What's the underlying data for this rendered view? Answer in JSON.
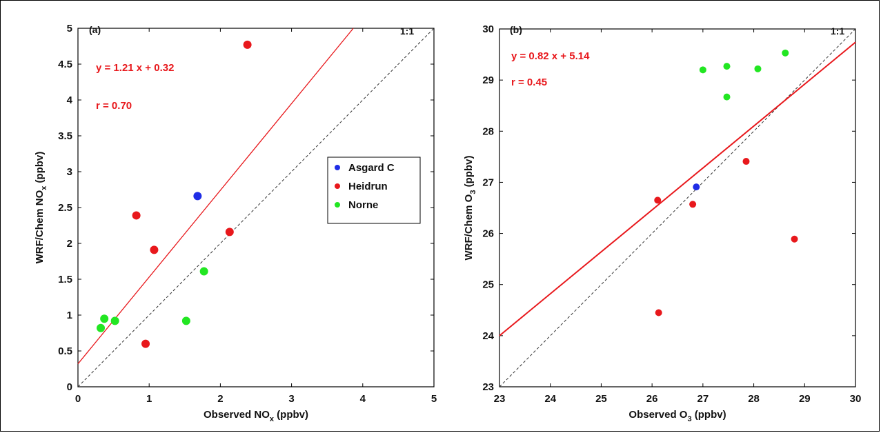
{
  "chart_data": [
    {
      "type": "scatter",
      "panel_label": "(a)",
      "xlabel": "Observed NO",
      "xlabel_sub": "x",
      "xlabel_tail": " (ppbv)",
      "ylabel": "WRF/Chem NO",
      "ylabel_sub": "x",
      "ylabel_tail": " (ppbv)",
      "xlim": [
        0,
        5
      ],
      "ylim": [
        0,
        5
      ],
      "xticks": [
        0,
        1,
        2,
        3,
        4,
        5
      ],
      "yticks": [
        0,
        0.5,
        1,
        1.5,
        2,
        2.5,
        3,
        3.5,
        4,
        4.5,
        5
      ],
      "xtick_labels": [
        "0",
        "1",
        "2",
        "3",
        "4",
        "5"
      ],
      "ytick_labels": [
        "0",
        "0.5",
        "1",
        "1.5",
        "2",
        "2.5",
        "3",
        "3.5",
        "4",
        "4.5",
        "5"
      ],
      "one_to_one_label": "1:1",
      "regression": {
        "slope": 1.21,
        "intercept": 0.32,
        "equation": "y = 1.21 x + 0.32",
        "r_text": "r = 0.70"
      },
      "series": [
        {
          "name": "Asgard C",
          "color": "#1f2de6",
          "points": [
            [
              1.68,
              2.66
            ]
          ]
        },
        {
          "name": "Heidrun",
          "color": "#e8181c",
          "points": [
            [
              2.38,
              4.77
            ],
            [
              0.82,
              2.39
            ],
            [
              1.07,
              1.91
            ],
            [
              2.13,
              2.16
            ],
            [
              0.95,
              0.6
            ]
          ]
        },
        {
          "name": "Norne",
          "color": "#22e622",
          "points": [
            [
              1.77,
              1.61
            ],
            [
              1.52,
              0.92
            ],
            [
              0.52,
              0.92
            ],
            [
              0.37,
              0.95
            ],
            [
              0.32,
              0.82
            ]
          ]
        }
      ],
      "legend": {
        "placement": "center-right"
      }
    },
    {
      "type": "scatter",
      "panel_label": "(b)",
      "xlabel": "Observed O",
      "xlabel_sub": "3",
      "xlabel_tail": " (ppbv)",
      "ylabel": "WRF/Chem O",
      "ylabel_sub": "3",
      "ylabel_tail": " (ppbv)",
      "xlim": [
        23,
        30
      ],
      "ylim": [
        23,
        30
      ],
      "xticks": [
        23,
        24,
        25,
        26,
        27,
        28,
        29,
        30
      ],
      "yticks": [
        23,
        24,
        25,
        26,
        27,
        28,
        29,
        30
      ],
      "xtick_labels": [
        "23",
        "24",
        "25",
        "26",
        "27",
        "28",
        "29",
        "30"
      ],
      "ytick_labels": [
        "23",
        "24",
        "25",
        "26",
        "27",
        "28",
        "29",
        "30"
      ],
      "one_to_one_label": "1:1",
      "regression": {
        "slope": 0.82,
        "intercept": 5.14,
        "equation": "y = 0.82 x + 5.14",
        "r_text": "r = 0.45"
      },
      "series": [
        {
          "name": "Asgard C",
          "color": "#1f2de6",
          "points": [
            [
              26.87,
              26.91
            ]
          ]
        },
        {
          "name": "Heidrun",
          "color": "#e8181c",
          "points": [
            [
              26.11,
              26.65
            ],
            [
              26.8,
              26.57
            ],
            [
              27.85,
              27.41
            ],
            [
              28.8,
              25.89
            ],
            [
              26.13,
              24.45
            ]
          ]
        },
        {
          "name": "Norne",
          "color": "#22e622",
          "points": [
            [
              27.0,
              29.2
            ],
            [
              27.47,
              29.27
            ],
            [
              28.08,
              29.22
            ],
            [
              28.62,
              29.53
            ],
            [
              27.47,
              28.67
            ]
          ]
        }
      ]
    }
  ]
}
